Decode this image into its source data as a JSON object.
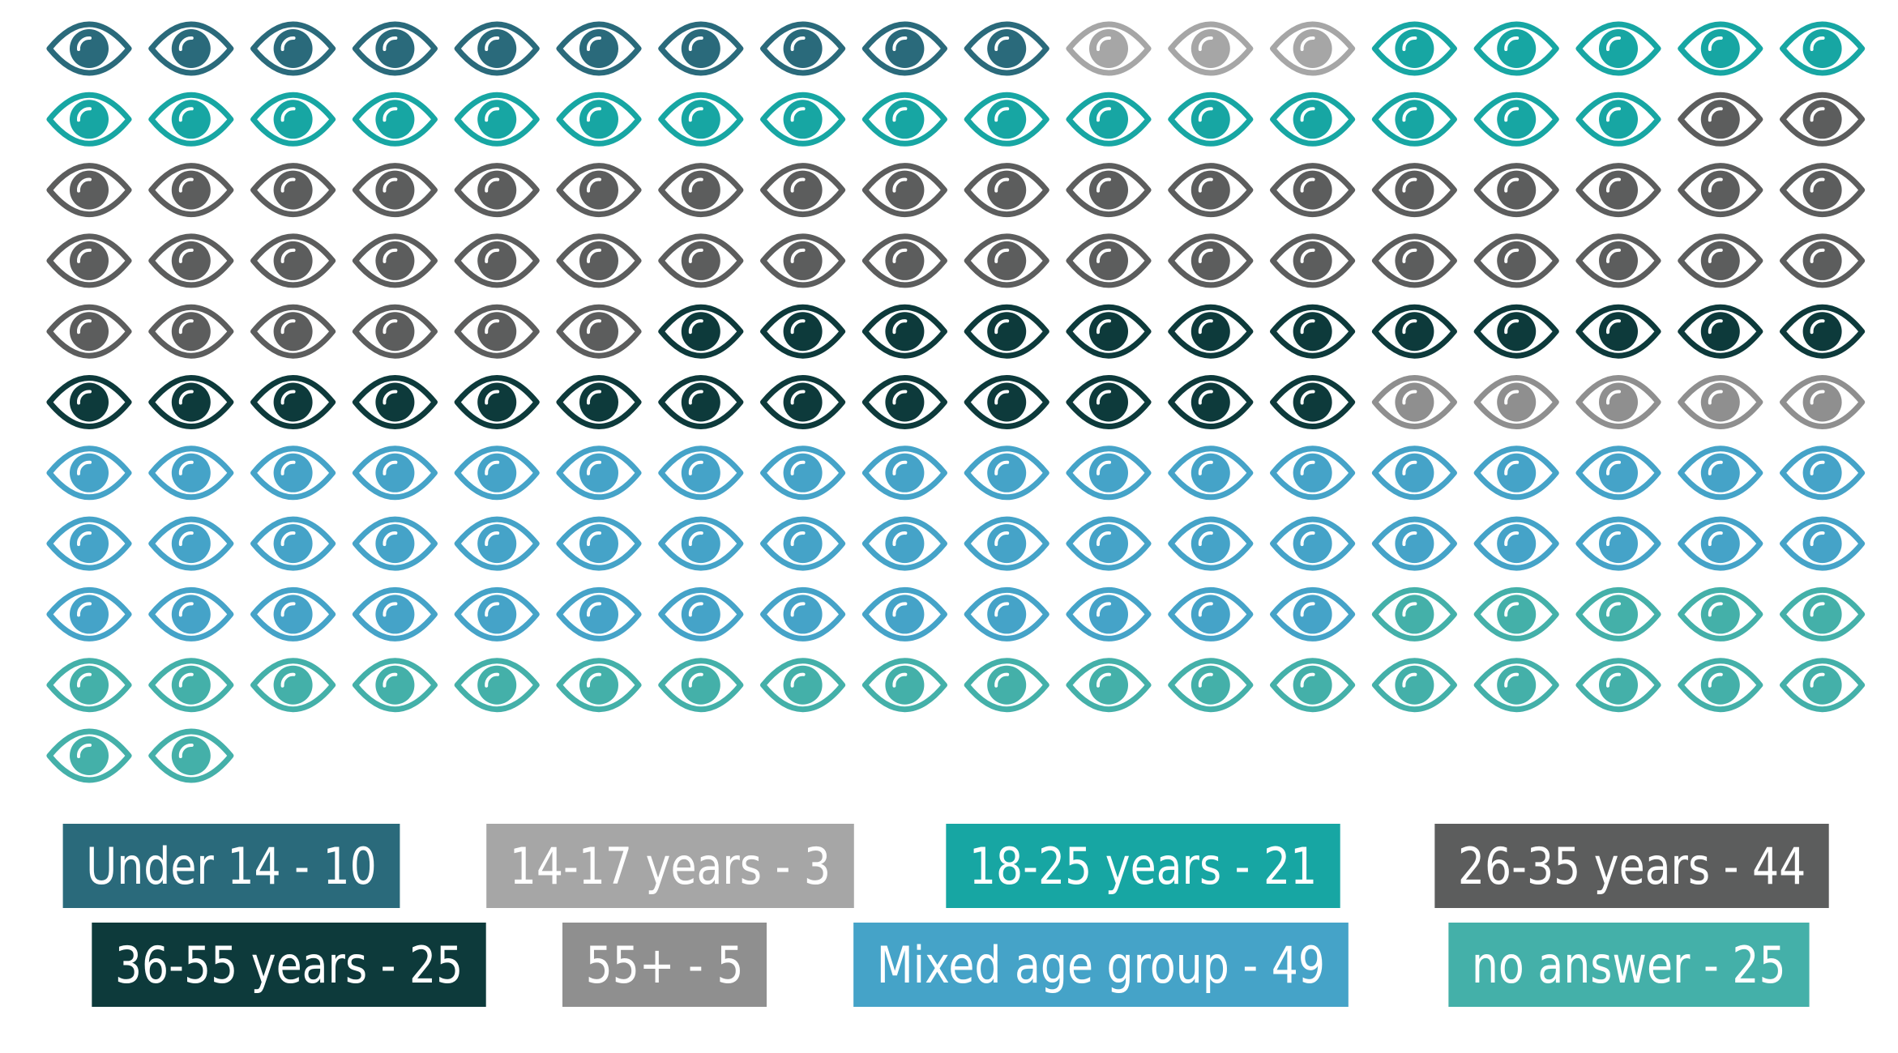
{
  "chart_data": {
    "type": "waffle",
    "icon": "eye-icon",
    "grid_columns": 18,
    "categories": [
      "Under 14",
      "14-17 years",
      "18-25 years",
      "26-35 years",
      "36-55 years",
      "55+",
      "Mixed age group",
      "no answer"
    ],
    "values": [
      10,
      3,
      21,
      44,
      25,
      5,
      49,
      25
    ],
    "colors": [
      "#2a6a7b",
      "#a6a6a6",
      "#17a6a3",
      "#5c5d5d",
      "#0d3a3b",
      "#8f8f8f",
      "#45a3c8",
      "#44b0a9"
    ],
    "legend": [
      {
        "label": "Under 14 - 10",
        "color": "#2a6a7b"
      },
      {
        "label": "14-17 years - 3",
        "color": "#a6a6a6"
      },
      {
        "label": "18-25 years - 21",
        "color": "#17a6a3"
      },
      {
        "label": "26-35 years - 44",
        "color": "#5c5d5d"
      },
      {
        "label": "36-55 years - 25",
        "color": "#0d3a3b"
      },
      {
        "label": "55+ - 5",
        "color": "#8f8f8f"
      },
      {
        "label": "Mixed age group - 49",
        "color": "#45a3c8"
      },
      {
        "label": "no answer - 25",
        "color": "#44b0a9"
      }
    ],
    "legend_placement": "bottom"
  }
}
